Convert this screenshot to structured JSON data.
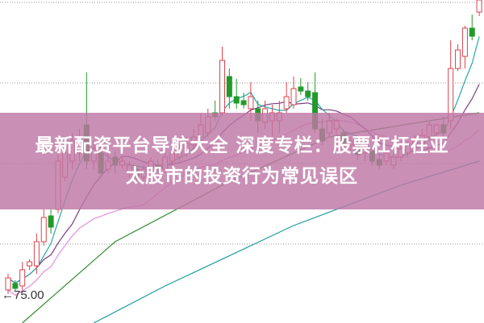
{
  "banner": {
    "line1": "最新配资平台导航大全 深度专栏：股票杠杆在亚",
    "line2": "太股市的投资行为常见误区"
  },
  "chart_data": {
    "type": "candlestick",
    "price_label": "←75.00",
    "gridlines": [
      111.5,
      101.5,
      91.5,
      81.5
    ],
    "ylim": [
      71.7,
      111.8
    ],
    "grid": true,
    "colors": {
      "up": "#d9434c",
      "down": "#229a2a",
      "ma5": "#2aa8a8",
      "ma10": "#7b3c86",
      "ma20": "#e8a2e2",
      "long_green": "#2e8b2e",
      "long_teal": "#1e9ba0",
      "banner": "#be76a5"
    },
    "candles": [
      [
        75.8,
        77.3,
        77.8,
        75.3
      ],
      [
        76.6,
        76.0,
        77.0,
        75.6
      ],
      [
        76.3,
        78.3,
        79.3,
        75.8
      ],
      [
        78.8,
        79.3,
        79.6,
        78.3
      ],
      [
        78.8,
        81.8,
        82.8,
        77.8
      ],
      [
        81.8,
        84.8,
        85.8,
        81.3
      ],
      [
        85.0,
        83.6,
        85.8,
        82.8
      ],
      [
        85.8,
        91.8,
        92.8,
        85.3
      ],
      [
        89.8,
        92.8,
        93.8,
        89.3
      ],
      [
        91.8,
        94.3,
        95.3,
        90.8
      ],
      [
        92.8,
        94.8,
        95.8,
        91.8
      ],
      [
        96.3,
        91.8,
        102.8,
        90.8
      ],
      [
        91.8,
        93.3,
        94.3,
        90.8
      ],
      [
        92.8,
        90.3,
        93.8,
        89.8
      ],
      [
        90.8,
        91.8,
        92.8,
        90.3
      ],
      [
        92.3,
        91.3,
        93.0,
        90.3
      ],
      [
        91.3,
        91.8,
        92.3,
        90.8
      ],
      [
        90.3,
        91.3,
        91.8,
        89.8
      ],
      [
        90.8,
        89.8,
        91.3,
        89.3
      ],
      [
        89.8,
        90.8,
        91.3,
        89.3
      ],
      [
        90.3,
        91.8,
        92.3,
        89.8
      ],
      [
        91.3,
        90.8,
        92.0,
        90.3
      ],
      [
        90.8,
        92.3,
        92.8,
        90.3
      ],
      [
        91.8,
        92.8,
        93.3,
        91.3
      ],
      [
        92.3,
        93.3,
        94.0,
        91.8
      ],
      [
        93.0,
        94.0,
        94.8,
        92.3
      ],
      [
        93.8,
        94.8,
        95.8,
        93.3
      ],
      [
        94.8,
        96.3,
        97.8,
        94.3
      ],
      [
        95.3,
        97.3,
        98.3,
        94.8
      ],
      [
        97.8,
        97.3,
        99.3,
        96.8
      ],
      [
        97.8,
        104.3,
        106.0,
        97.3
      ],
      [
        102.3,
        99.8,
        103.3,
        98.3
      ],
      [
        99.8,
        99.0,
        102.0,
        98.3
      ],
      [
        99.3,
        98.8,
        100.3,
        98.3
      ],
      [
        98.3,
        99.8,
        101.6,
        96.8
      ],
      [
        98.3,
        96.8,
        99.3,
        95.3
      ],
      [
        96.6,
        98.3,
        99.3,
        95.8
      ],
      [
        96.8,
        97.8,
        98.8,
        94.8
      ],
      [
        96.8,
        97.8,
        99.3,
        95.3
      ],
      [
        98.3,
        99.8,
        101.6,
        97.8
      ],
      [
        98.8,
        100.8,
        102.3,
        98.3
      ],
      [
        101.0,
        100.5,
        102.1,
        100.0
      ],
      [
        100.5,
        99.8,
        101.6,
        99.3
      ],
      [
        100.3,
        95.8,
        102.8,
        95.3
      ],
      [
        95.8,
        94.3,
        97.0,
        93.8
      ],
      [
        95.3,
        96.8,
        97.8,
        94.8
      ],
      [
        95.8,
        96.8,
        97.0,
        93.8
      ],
      [
        95.3,
        93.8,
        95.8,
        93.3
      ],
      [
        93.8,
        94.3,
        94.8,
        92.8
      ],
      [
        94.0,
        92.6,
        94.6,
        92.0
      ],
      [
        92.8,
        93.3,
        93.8,
        91.8
      ],
      [
        93.0,
        91.8,
        93.6,
        91.3
      ],
      [
        92.0,
        91.3,
        92.6,
        90.8
      ],
      [
        91.8,
        92.8,
        93.3,
        91.3
      ],
      [
        91.3,
        92.3,
        92.8,
        90.8
      ],
      [
        92.3,
        93.3,
        93.8,
        91.8
      ],
      [
        92.8,
        93.8,
        94.3,
        92.3
      ],
      [
        93.6,
        94.3,
        95.0,
        93.0
      ],
      [
        94.0,
        95.0,
        95.8,
        93.6
      ],
      [
        94.8,
        96.3,
        96.8,
        94.3
      ],
      [
        95.3,
        96.3,
        96.5,
        94.8
      ],
      [
        96.3,
        95.3,
        97.3,
        94.8
      ],
      [
        96.8,
        103.3,
        106.8,
        95.8
      ],
      [
        103.3,
        105.6,
        106.3,
        103.0
      ],
      [
        104.8,
        108.3,
        108.6,
        103.3
      ],
      [
        108.3,
        107.3,
        110.0,
        106.8
      ],
      [
        110.3,
        111.8,
        111.8,
        109.8
      ]
    ],
    "long_green_ma": [
      [
        2,
        71.7
      ],
      [
        15,
        81.8
      ],
      [
        30,
        88.8
      ],
      [
        45,
        94.8
      ],
      [
        66,
        97.8
      ]
    ],
    "long_teal_ma": [
      [
        12,
        71.7
      ],
      [
        22,
        76.3
      ],
      [
        40,
        83.8
      ],
      [
        55,
        88.8
      ],
      [
        66,
        91.8
      ]
    ]
  }
}
